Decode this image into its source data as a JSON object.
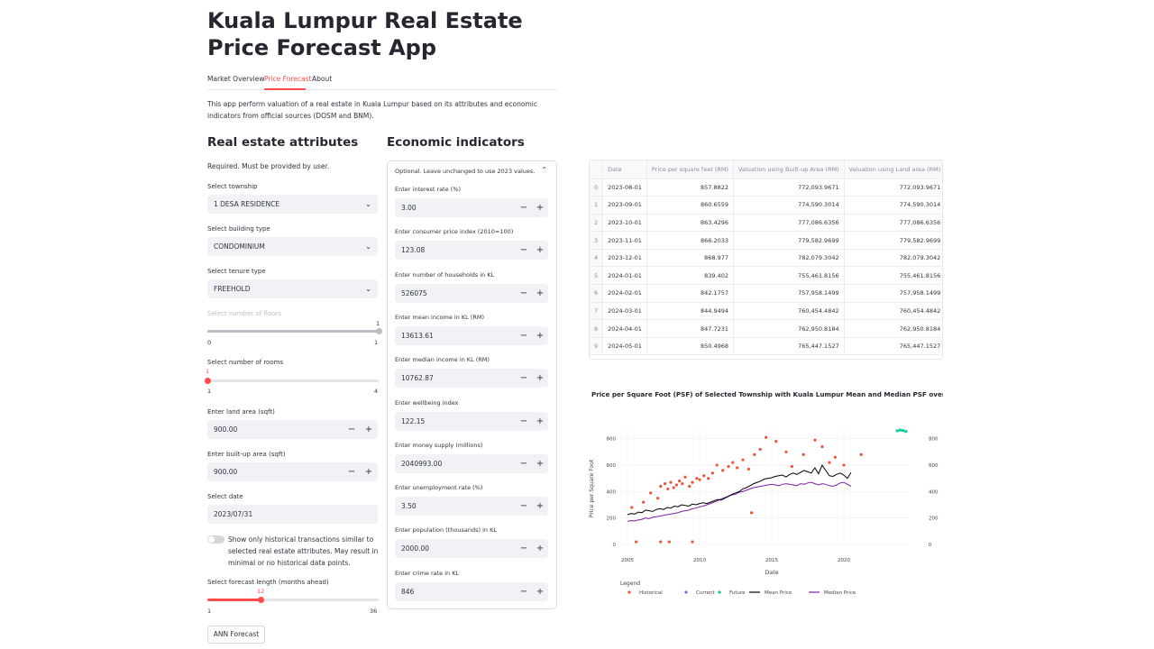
{
  "app": {
    "title": "Kuala Lumpur Real Estate Price Forecast App",
    "description": "This app perform valuation of a real estate in Kuala Lumpur based on its attributes and economic indicators from official sources (DOSM and BNM)."
  },
  "tabs": [
    {
      "label": "Market Overview",
      "active": false
    },
    {
      "label": "Price Forecast",
      "active": true
    },
    {
      "label": "About",
      "active": false
    }
  ],
  "attributes": {
    "heading": "Real estate attributes",
    "required_note": "Required. Must be provided by user.",
    "township": {
      "label": "Select township",
      "value": "1 DESA RESIDENCE"
    },
    "building_type": {
      "label": "Select building type",
      "value": "CONDOMINIUM"
    },
    "tenure_type": {
      "label": "Select tenure type",
      "value": "FREEHOLD"
    },
    "floors": {
      "label": "Select number of floors",
      "value": "1",
      "min": "0",
      "max": "1",
      "disabled": true,
      "level": 1.0
    },
    "rooms": {
      "label": "Select number of rooms",
      "value": "1",
      "min": "1",
      "max": "4",
      "level": 0.0
    },
    "land_area": {
      "label": "Enter land area (sqft)",
      "value": "900.00"
    },
    "built_up_area": {
      "label": "Enter built-up area (sqft)",
      "value": "900.00"
    },
    "date": {
      "label": "Select date",
      "value": "2023/07/31"
    },
    "historical_toggle": {
      "label": "Show only historical transactions similar to selected real estate attributes. May result in minimal or no historical data points.",
      "on": false
    },
    "forecast_length": {
      "label": "Select forecast length (months ahead)",
      "value": "12",
      "min": "1",
      "max": "36",
      "level": 0.314
    },
    "forecast_button": "ANN Forecast"
  },
  "economic": {
    "heading": "Economic indicators",
    "expander_label": "Optional. Leave unchanged to use 2023 values.",
    "caret": "⌃",
    "fields": [
      {
        "label": "Enter interest rate (%)",
        "value": "3.00"
      },
      {
        "label": "Enter consumer price index (2010=100)",
        "value": "123.08"
      },
      {
        "label": "Enter number of households in KL",
        "value": "526075"
      },
      {
        "label": "Enter mean income in KL (RM)",
        "value": "13613.61"
      },
      {
        "label": "Enter median income in KL (RM)",
        "value": "10762.87"
      },
      {
        "label": "Enter wellbeing index",
        "value": "122.15"
      },
      {
        "label": "Enter money supply (millions)",
        "value": "2040993.00"
      },
      {
        "label": "Enter unemployment rate (%)",
        "value": "3.50"
      },
      {
        "label": "Enter population (thousands) in KL",
        "value": "2000.00"
      },
      {
        "label": "Enter crime rate in KL",
        "value": "846"
      }
    ],
    "minus": "−",
    "plus": "+"
  },
  "table": {
    "columns": [
      "",
      "Date",
      "Price per square feet (RM)",
      "Valuation using Built-up Area (RM)",
      "Valuation using Land area (RM)"
    ],
    "rows": [
      [
        "0",
        "2023-08-01",
        "857.8822",
        "772,093.9671",
        "772,093.9671"
      ],
      [
        "1",
        "2023-09-01",
        "860.6559",
        "774,590.3014",
        "774,590.3014"
      ],
      [
        "2",
        "2023-10-01",
        "863.4296",
        "777,086.6356",
        "777,086.6356"
      ],
      [
        "3",
        "2023-11-01",
        "866.2033",
        "779,582.9699",
        "779,582.9699"
      ],
      [
        "4",
        "2023-12-01",
        "868.977",
        "782,079.3042",
        "782,079.3042"
      ],
      [
        "5",
        "2024-01-01",
        "839.402",
        "755,461.8156",
        "755,461.8156"
      ],
      [
        "6",
        "2024-02-01",
        "842.1757",
        "757,958.1499",
        "757,958.1499"
      ],
      [
        "7",
        "2024-03-01",
        "844.9494",
        "760,454.4842",
        "760,454.4842"
      ],
      [
        "8",
        "2024-04-01",
        "847.7231",
        "762,950.8184",
        "762,950.8184"
      ],
      [
        "9",
        "2024-05-01",
        "850.4968",
        "765,447.1527",
        "765,447.1527"
      ]
    ]
  },
  "chart_data": {
    "type": "scatter",
    "title": "Price per Square Foot (PSF) of Selected Township with Kuala Lumpur Mean and Median PSF over Tim",
    "xlabel": "Date",
    "ylabel": "Price per Square Foot",
    "xlim": [
      2004.5,
      2024.5
    ],
    "ylim": [
      0,
      880
    ],
    "x_ticks": [
      "2005",
      "2010",
      "2015",
      "2020"
    ],
    "y_ticks": [
      "0",
      "200",
      "400",
      "600",
      "800"
    ],
    "y2_ticks": [
      "0",
      "200",
      "400",
      "600",
      "800"
    ],
    "legend_title": "Legend",
    "legend": [
      {
        "name": "Historical",
        "color": "#ef553b",
        "kind": "marker"
      },
      {
        "name": "Current",
        "color": "#636efa",
        "kind": "marker"
      },
      {
        "name": "Future",
        "color": "#00cc96",
        "kind": "marker"
      },
      {
        "name": "Mean Price",
        "color": "#000000",
        "kind": "line"
      },
      {
        "name": "Median Price",
        "color": "#7b1fa2",
        "kind": "line"
      }
    ],
    "series": [
      {
        "name": "Historical",
        "points": [
          [
            2005.3,
            280
          ],
          [
            2006.1,
            320
          ],
          [
            2006.6,
            390
          ],
          [
            2007.1,
            350
          ],
          [
            2007.3,
            440
          ],
          [
            2007.6,
            460
          ],
          [
            2007.8,
            420
          ],
          [
            2008.0,
            470
          ],
          [
            2008.2,
            430
          ],
          [
            2008.4,
            450
          ],
          [
            2008.6,
            480
          ],
          [
            2008.8,
            460
          ],
          [
            2009.0,
            510
          ],
          [
            2009.3,
            440
          ],
          [
            2009.5,
            470
          ],
          [
            2009.8,
            500
          ],
          [
            2010.0,
            490
          ],
          [
            2010.3,
            520
          ],
          [
            2010.6,
            500
          ],
          [
            2010.9,
            540
          ],
          [
            2011.2,
            600
          ],
          [
            2011.6,
            560
          ],
          [
            2012.0,
            590
          ],
          [
            2012.3,
            620
          ],
          [
            2012.6,
            580
          ],
          [
            2013.0,
            640
          ],
          [
            2013.4,
            570
          ],
          [
            2013.8,
            680
          ],
          [
            2014.2,
            720
          ],
          [
            2014.6,
            810
          ],
          [
            2015.3,
            780
          ],
          [
            2016.0,
            700
          ],
          [
            2016.4,
            590
          ],
          [
            2017.2,
            680
          ],
          [
            2018.0,
            790
          ],
          [
            2018.5,
            740
          ],
          [
            2019.0,
            620
          ],
          [
            2019.4,
            660
          ],
          [
            2020.0,
            600
          ],
          [
            2021.2,
            680
          ],
          [
            2013.6,
            240
          ],
          [
            2005.6,
            20
          ],
          [
            2007.3,
            20
          ],
          [
            2007.9,
            20
          ],
          [
            2009.5,
            20
          ]
        ]
      },
      {
        "name": "Future",
        "points": [
          [
            2023.7,
            860
          ],
          [
            2023.9,
            865
          ],
          [
            2024.1,
            862
          ],
          [
            2024.3,
            855
          ]
        ]
      }
    ],
    "mean_start": 2005,
    "mean_step": 0.0833,
    "mean_values": [
      225,
      235,
      230,
      245,
      240,
      260,
      255,
      250,
      265,
      270,
      265,
      280,
      275,
      290,
      285,
      300,
      295,
      290,
      305,
      300,
      310,
      315,
      310,
      320,
      330,
      340,
      335,
      350,
      365,
      380,
      390,
      400,
      420,
      430,
      445,
      460,
      470,
      480,
      495,
      500,
      505,
      515,
      520,
      525,
      510,
      530,
      540,
      530,
      545,
      560,
      550,
      540,
      580,
      535,
      600,
      560,
      520,
      515,
      530,
      540,
      525,
      500,
      545
    ],
    "median_values": [
      175,
      180,
      178,
      185,
      190,
      200,
      195,
      205,
      210,
      215,
      220,
      225,
      230,
      235,
      240,
      250,
      255,
      260,
      270,
      275,
      285,
      290,
      300,
      310,
      320,
      330,
      345,
      355,
      365,
      375,
      380,
      395,
      400,
      410,
      420,
      430,
      435,
      440,
      445,
      450,
      455,
      450,
      445,
      455,
      460,
      455,
      450,
      445,
      460,
      455,
      465,
      470,
      460,
      450,
      460,
      455,
      445,
      440,
      450,
      465,
      470,
      455,
      440
    ]
  }
}
